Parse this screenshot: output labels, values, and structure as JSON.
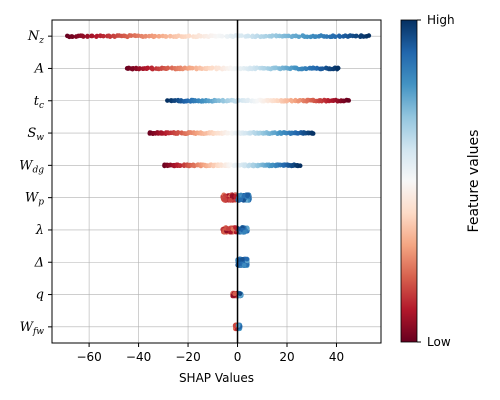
{
  "chart_data": {
    "type": "scatter",
    "subtype": "shap-beeswarm",
    "xlabel": "SHAP Values",
    "xlim": [
      -75,
      58
    ],
    "xticks": [
      -60,
      -40,
      -20,
      0,
      20,
      40
    ],
    "grid": true,
    "zero_line": true,
    "features": [
      {
        "label": "N",
        "sub": "z",
        "min": -69,
        "max": 53,
        "spread": 0.7
      },
      {
        "label": "A",
        "sub": "",
        "min": -45,
        "max": 41,
        "spread": 0.7
      },
      {
        "label": "t",
        "sub": "c",
        "min": -28,
        "max": 45,
        "spread": 0.7
      },
      {
        "label": "S",
        "sub": "w",
        "min": -36,
        "max": 31,
        "spread": 0.7
      },
      {
        "label": "W",
        "sub": "dg",
        "min": -30,
        "max": 25,
        "spread": 0.7
      },
      {
        "label": "W",
        "sub": "p",
        "min": -6,
        "max": 5,
        "spread": 3
      },
      {
        "label": "λ",
        "sub": "",
        "min": -6,
        "max": 4,
        "spread": 2.5
      },
      {
        "label": "Δ",
        "sub": "",
        "min": 0,
        "max": 4,
        "spread": 3.5
      },
      {
        "label": "q",
        "sub": "",
        "min": -2,
        "max": 1.5,
        "spread": 1.5
      },
      {
        "label": "W",
        "sub": "fw",
        "min": -1,
        "max": 1,
        "spread": 2
      }
    ],
    "colorbar": {
      "title": "Feature values",
      "high_label": "High",
      "low_label": "Low",
      "colormap": "RdBu",
      "colors": [
        "#67001f",
        "#b2182b",
        "#d6604d",
        "#f4a582",
        "#fddbc7",
        "#f7f7f7",
        "#d1e5f0",
        "#92c5de",
        "#4393c3",
        "#2166ac",
        "#053061"
      ]
    }
  }
}
